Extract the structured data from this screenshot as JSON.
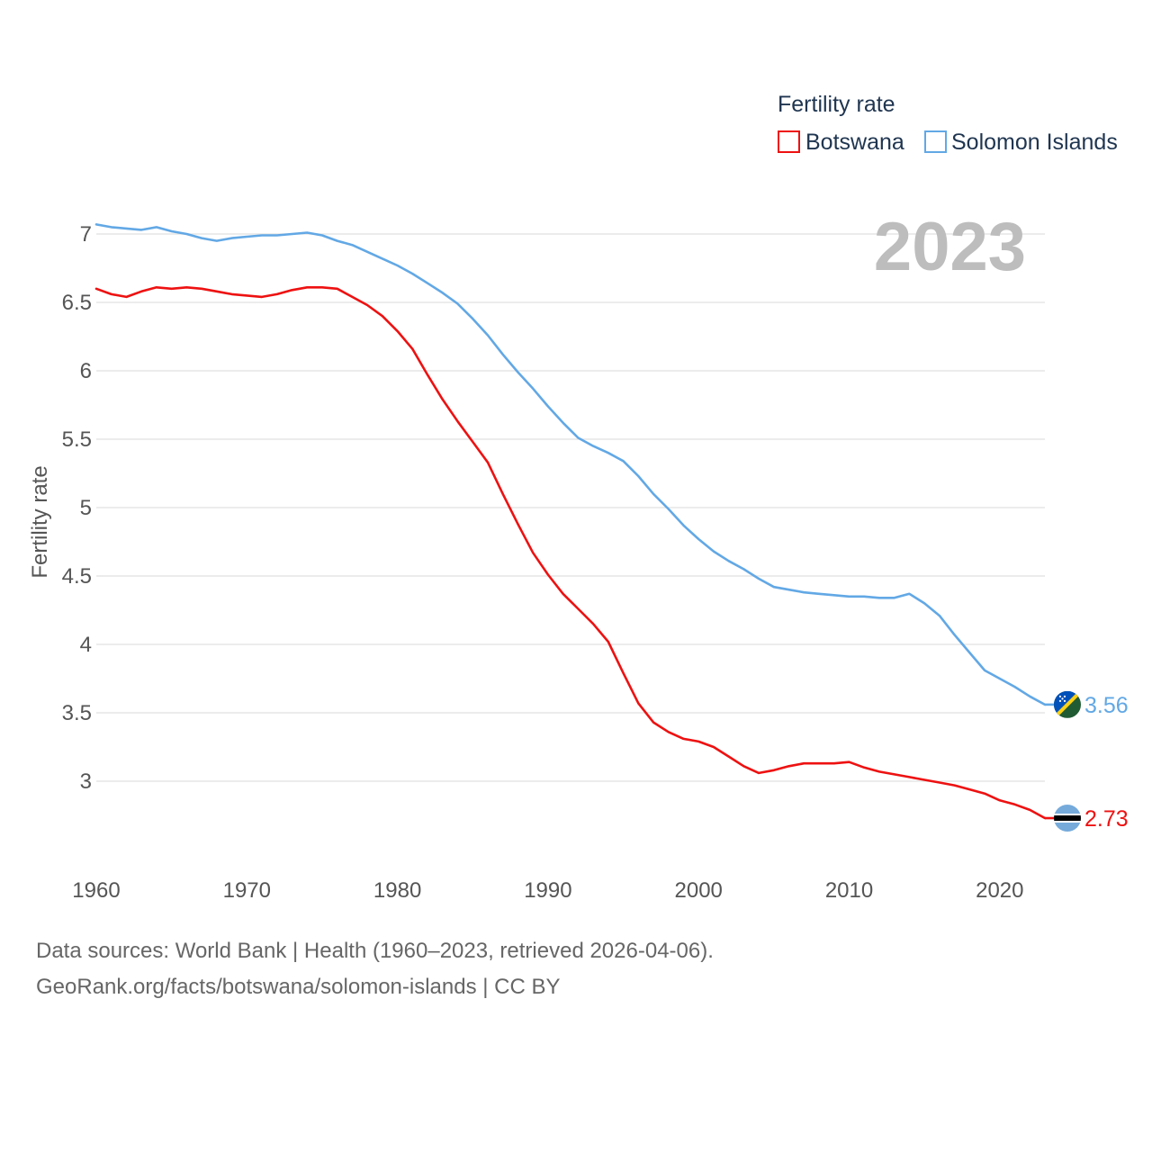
{
  "chart_data": {
    "type": "line",
    "title": "Fertility rate",
    "current_year_label": "2023",
    "ylabel": "Fertility rate",
    "xlabel": "",
    "xlim": [
      1960,
      2023
    ],
    "ylim": [
      2.5,
      7.1
    ],
    "x_ticks": [
      1960,
      1970,
      1980,
      1990,
      2000,
      2010,
      2020
    ],
    "y_ticks": [
      3,
      3.5,
      4,
      4.5,
      5,
      5.5,
      6,
      6.5,
      7
    ],
    "y_tick_labels": [
      "3",
      "3.5",
      "4",
      "4.5",
      "5",
      "5.5",
      "6",
      "6.5",
      "7"
    ],
    "x": [
      1960,
      1961,
      1962,
      1963,
      1964,
      1965,
      1966,
      1967,
      1968,
      1969,
      1970,
      1971,
      1972,
      1973,
      1974,
      1975,
      1976,
      1977,
      1978,
      1979,
      1980,
      1981,
      1982,
      1983,
      1984,
      1985,
      1986,
      1987,
      1988,
      1989,
      1990,
      1991,
      1992,
      1993,
      1994,
      1995,
      1996,
      1997,
      1998,
      1999,
      2000,
      2001,
      2002,
      2003,
      2004,
      2005,
      2006,
      2007,
      2008,
      2009,
      2010,
      2011,
      2012,
      2013,
      2014,
      2015,
      2016,
      2017,
      2018,
      2019,
      2020,
      2021,
      2022,
      2023
    ],
    "series": [
      {
        "name": "Botswana",
        "color": "#ee1111",
        "end_label": "2.73",
        "values": [
          6.6,
          6.56,
          6.54,
          6.58,
          6.61,
          6.6,
          6.61,
          6.6,
          6.58,
          6.56,
          6.55,
          6.54,
          6.56,
          6.59,
          6.61,
          6.61,
          6.6,
          6.54,
          6.48,
          6.4,
          6.29,
          6.16,
          5.97,
          5.79,
          5.63,
          5.48,
          5.33,
          5.1,
          4.88,
          4.67,
          4.51,
          4.37,
          4.26,
          4.15,
          4.02,
          3.79,
          3.57,
          3.43,
          3.36,
          3.31,
          3.29,
          3.25,
          3.18,
          3.11,
          3.06,
          3.08,
          3.11,
          3.13,
          3.13,
          3.13,
          3.14,
          3.1,
          3.07,
          3.05,
          3.03,
          3.01,
          2.99,
          2.97,
          2.94,
          2.91,
          2.86,
          2.83,
          2.79,
          2.73
        ]
      },
      {
        "name": "Solomon Islands",
        "color": "#62a8e5",
        "end_label": "3.56",
        "values": [
          7.07,
          7.05,
          7.04,
          7.03,
          7.05,
          7.02,
          7.0,
          6.97,
          6.95,
          6.97,
          6.98,
          6.99,
          6.99,
          7.0,
          7.01,
          6.99,
          6.95,
          6.92,
          6.87,
          6.82,
          6.77,
          6.71,
          6.64,
          6.57,
          6.49,
          6.38,
          6.26,
          6.12,
          5.99,
          5.87,
          5.74,
          5.62,
          5.51,
          5.45,
          5.4,
          5.34,
          5.23,
          5.1,
          4.99,
          4.87,
          4.77,
          4.68,
          4.61,
          4.55,
          4.48,
          4.42,
          4.4,
          4.38,
          4.37,
          4.36,
          4.35,
          4.35,
          4.34,
          4.34,
          4.37,
          4.3,
          4.21,
          4.07,
          3.94,
          3.81,
          3.75,
          3.69,
          3.62,
          3.56
        ]
      }
    ]
  },
  "footer": {
    "line1": "Data sources: World Bank | Health (1960–2023, retrieved 2026-04-06).",
    "line2": "GeoRank.org/facts/botswana/solomon-islands | CC BY"
  },
  "flags": {
    "botswana_colors": [
      "#75aadb",
      "#000000",
      "#ffffff"
    ],
    "solomon_colors": [
      "#0051ba",
      "#215b33",
      "#fcd116",
      "#ffffff"
    ]
  }
}
